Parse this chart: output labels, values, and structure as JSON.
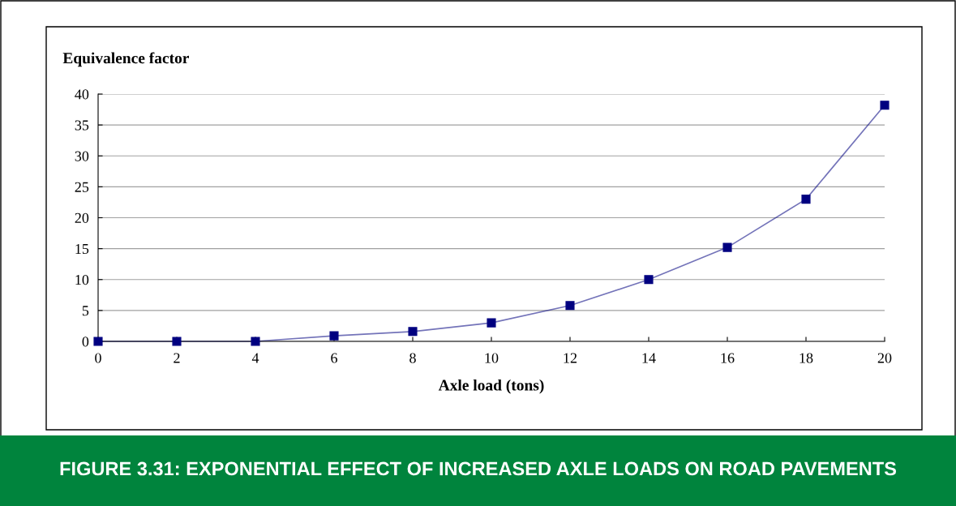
{
  "chart_data": {
    "type": "line",
    "title": "FIGURE 3.31: EXPONENTIAL EFFECT OF INCREASED AXLE LOADS ON ROAD PAVEMENTS",
    "ylabel": "Equivalence factor",
    "xlabel": "Axle load (tons)",
    "x": [
      0,
      2,
      4,
      6,
      8,
      10,
      12,
      14,
      16,
      18,
      20
    ],
    "series": [
      {
        "color": "#000080",
        "values": [
          0,
          0,
          0,
          0.9,
          1.6,
          3.0,
          5.8,
          10,
          15.2,
          23,
          38.2
        ]
      }
    ],
    "xlim": [
      0,
      20
    ],
    "xticks": [
      0,
      2,
      4,
      6,
      8,
      10,
      12,
      14,
      16,
      18,
      20
    ],
    "ylim": [
      0,
      40
    ],
    "yticks": [
      0,
      5,
      10,
      15,
      20,
      25,
      30,
      35,
      40
    ],
    "grid": "y",
    "marker": "square",
    "line_style": "solid"
  }
}
